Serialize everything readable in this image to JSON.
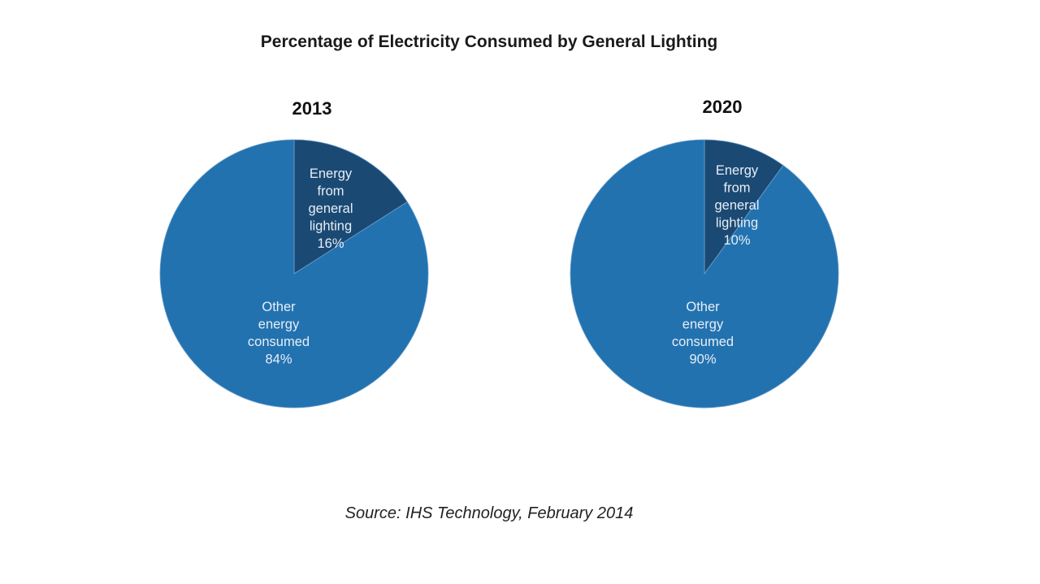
{
  "chart_data": {
    "type": "pie",
    "title": "Percentage of Electricity Consumed by General Lighting",
    "source": "Source: IHS Technology, February 2014",
    "colors": {
      "lighting": "#1a4a74",
      "other": "#2272b0"
    },
    "charts": [
      {
        "subtitle": "2013",
        "slices": [
          {
            "name": "Energy from general lighting",
            "value": 16,
            "label_lines": [
              "Energy",
              "from",
              "general",
              "lighting",
              "16%"
            ],
            "color": "#1a4a74"
          },
          {
            "name": "Other energy consumed",
            "value": 84,
            "label_lines": [
              "Other",
              "energy",
              "consumed",
              "84%"
            ],
            "color": "#2272b0"
          }
        ]
      },
      {
        "subtitle": "2020",
        "slices": [
          {
            "name": "Energy from general lighting",
            "value": 10,
            "label_lines": [
              "Energy",
              "from",
              "general",
              "lighting",
              "10%"
            ],
            "color": "#1a4a74"
          },
          {
            "name": "Other energy consumed",
            "value": 90,
            "label_lines": [
              "Other",
              "energy",
              "consumed",
              "90%"
            ],
            "color": "#2272b0"
          }
        ]
      }
    ]
  }
}
